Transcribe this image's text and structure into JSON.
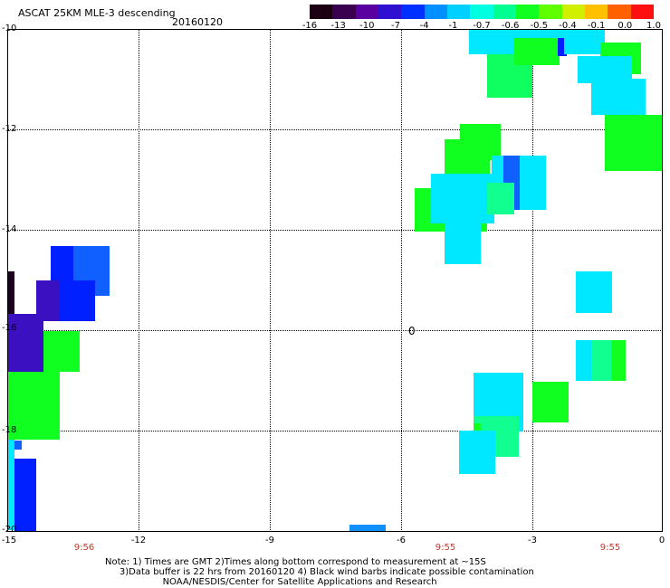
{
  "title": "ASCAT 25KM MLE-3 descending",
  "date": "20160120",
  "colorbar": {
    "labels": [
      "-16",
      "-13",
      "-10",
      "-7",
      "-4",
      "-1",
      "-0.7",
      "-0.6",
      "-0.5",
      "-0.4",
      "-0.1",
      "0.0",
      "1.0"
    ],
    "colors": [
      "#1a0010",
      "#3a0050",
      "#5a00a0",
      "#3010d0",
      "#0030ff",
      "#0090ff",
      "#00d0ff",
      "#00ffe0",
      "#00ff90",
      "#10ff20",
      "#60ff00",
      "#d0f000",
      "#ffc000",
      "#ff6000",
      "#ff1010"
    ]
  },
  "y_axis": [
    "-10",
    "-12",
    "-14",
    "-16",
    "-18",
    "-20"
  ],
  "x_axis": [
    "-15",
    "-12",
    "-9",
    "-6",
    "-3",
    "0"
  ],
  "times": [
    "9:56",
    "9:55",
    "9:55"
  ],
  "notes": [
    "Note: 1) Times are GMT 2)Times along bottom correspond to measurement at ~15S",
    "     3)Data buffer is 22 hrs from 20160120 4) Black wind barbs indicate possible contamination",
    "                    NOAA/NESDIS/Center for Satellite Applications and Research"
  ],
  "barb_label": "0",
  "colors": {
    "violet": "#3a10c0",
    "blue": "#0020ff",
    "midblue": "#1060ff",
    "cyan": "#00e8ff",
    "aqua": "#00ffd0",
    "green": "#10ff20",
    "lime": "#40ff10",
    "dark": "#200020",
    "sky": "#1090ff"
  }
}
